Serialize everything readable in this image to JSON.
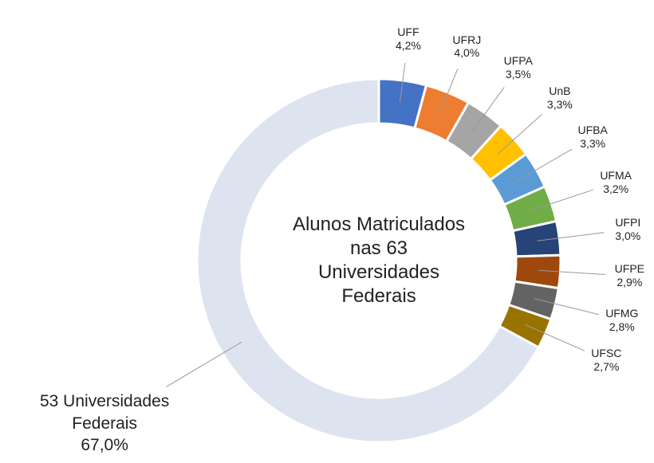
{
  "chart_data": {
    "type": "donut",
    "title": "Alunos Matriculados nas 63 Universidades Federais",
    "categories": [
      "UFF",
      "UFRJ",
      "UFPA",
      "UnB",
      "UFBA",
      "UFMA",
      "UFPI",
      "UFPE",
      "UFMG",
      "UFSC",
      "53 Universidades Federais"
    ],
    "values": [
      4.2,
      4.0,
      3.5,
      3.3,
      3.3,
      3.2,
      3.0,
      2.9,
      2.8,
      2.7,
      67.0
    ],
    "value_labels": [
      "4,2%",
      "4,0%",
      "3,5%",
      "3,3%",
      "3,3%",
      "3,2%",
      "3,0%",
      "2,9%",
      "2,8%",
      "2,7%",
      "67,0%"
    ],
    "colors": [
      "#4472c4",
      "#ed7d31",
      "#a5a5a5",
      "#ffc000",
      "#5b9bd5",
      "#70ad47",
      "#264478",
      "#9e480e",
      "#636363",
      "#997300",
      "#dde4f0"
    ]
  }
}
